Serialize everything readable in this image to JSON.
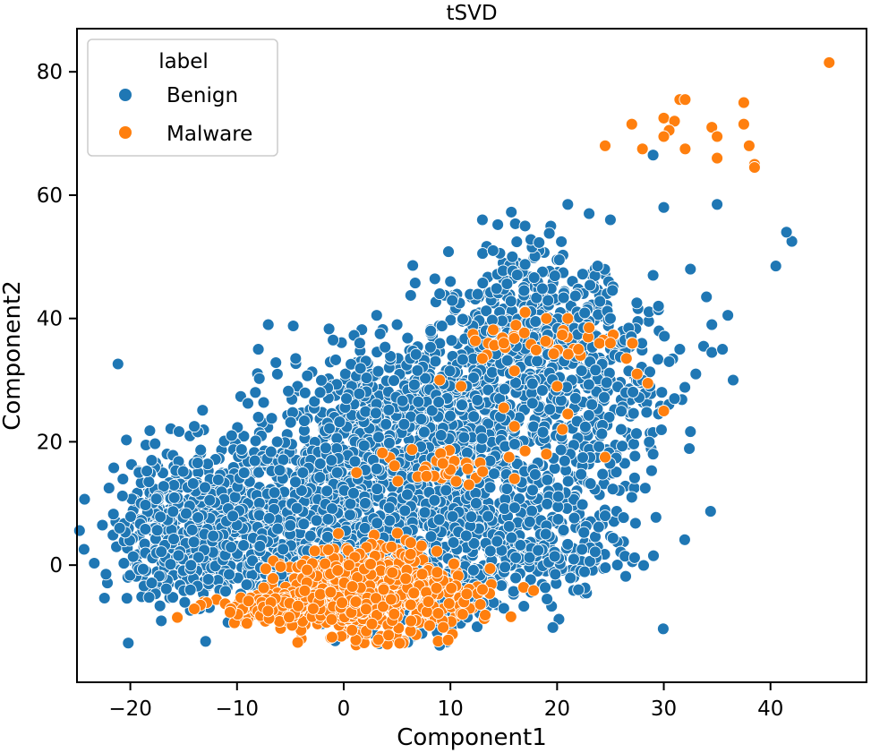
{
  "chart_data": {
    "type": "scatter",
    "title": "tSVD",
    "xlabel": "Component1",
    "ylabel": "Component2",
    "xlim": [
      -25,
      49
    ],
    "ylim": [
      -19,
      87
    ],
    "xticks": [
      -20,
      -10,
      0,
      10,
      20,
      30,
      40
    ],
    "yticks": [
      0,
      20,
      40,
      60,
      80
    ],
    "xtick_labels": [
      "−20",
      "−10",
      "0",
      "10",
      "20",
      "30",
      "40"
    ],
    "ytick_labels": [
      "0",
      "20",
      "40",
      "60",
      "80"
    ],
    "grid": false,
    "legend": {
      "title": "label",
      "position": "top-left",
      "entries": [
        "Benign",
        "Malware"
      ]
    },
    "colors": {
      "Benign": "#1f77b4",
      "Malware": "#ff7f0e"
    },
    "series": [
      {
        "name": "Benign",
        "color": "#1f77b4",
        "outliers": [
          [
            29,
            66.5
          ],
          [
            30,
            58
          ],
          [
            35,
            58.5
          ],
          [
            42,
            52.5
          ],
          [
            41.5,
            54
          ],
          [
            40.5,
            48.5
          ],
          [
            32.5,
            48
          ],
          [
            29,
            47
          ],
          [
            29.5,
            42
          ],
          [
            34,
            43.5
          ],
          [
            36,
            40.5
          ],
          [
            34.5,
            39
          ],
          [
            36.5,
            30
          ],
          [
            34.5,
            34.5
          ],
          [
            31.5,
            35
          ],
          [
            30.5,
            33
          ],
          [
            29.5,
            24.5
          ],
          [
            29,
            18
          ],
          [
            27,
            11
          ],
          [
            -8,
            35
          ],
          [
            -4.5,
            33.5
          ],
          [
            -1,
            36.5
          ],
          [
            1.5,
            36
          ],
          [
            5,
            39
          ],
          [
            9,
            44
          ],
          [
            10,
            46
          ],
          [
            14,
            51
          ],
          [
            13,
            56
          ],
          [
            17,
            55
          ],
          [
            21,
            58.5
          ],
          [
            23,
            57
          ],
          [
            25,
            56
          ],
          [
            -21,
            6
          ],
          [
            -22,
            12.5
          ],
          [
            -18,
            17
          ],
          [
            -14,
            22.5
          ],
          [
            -10.5,
            21
          ],
          [
            -8,
            24
          ],
          [
            25,
            40
          ],
          [
            27,
            36
          ],
          [
            33,
            31
          ],
          [
            35.5,
            35
          ],
          [
            28,
            30
          ],
          [
            31,
            27
          ],
          [
            26,
            22
          ],
          [
            24.5,
            8
          ],
          [
            22,
            -4
          ],
          [
            15,
            -7
          ],
          [
            12.5,
            -10
          ],
          [
            9,
            -13
          ],
          [
            6,
            -12.5
          ],
          [
            1,
            -10.5
          ],
          [
            -2,
            -9.5
          ],
          [
            -8,
            -5
          ]
        ],
        "clusters": [
          {
            "center": [
              -14,
              5
            ],
            "spread": [
              4,
              5
            ],
            "count": 260
          },
          {
            "center": [
              -6,
              10
            ],
            "spread": [
              5,
              7
            ],
            "count": 320
          },
          {
            "center": [
              2,
              15
            ],
            "spread": [
              6,
              8
            ],
            "count": 360
          },
          {
            "center": [
              6,
              25
            ],
            "spread": [
              6,
              6
            ],
            "count": 260
          },
          {
            "center": [
              12,
              30
            ],
            "spread": [
              5,
              7
            ],
            "count": 260
          },
          {
            "center": [
              18,
              40
            ],
            "spread": [
              4,
              6
            ],
            "count": 280
          },
          {
            "center": [
              20,
              25
            ],
            "spread": [
              5,
              9
            ],
            "count": 260
          },
          {
            "center": [
              12,
              10
            ],
            "spread": [
              7,
              7
            ],
            "count": 320
          },
          {
            "center": [
              18,
              2
            ],
            "spread": [
              5,
              4
            ],
            "count": 160
          },
          {
            "center": [
              -10,
              -1
            ],
            "spread": [
              5,
              3
            ],
            "count": 160
          },
          {
            "center": [
              -16,
              12
            ],
            "spread": [
              3,
              4
            ],
            "count": 100
          },
          {
            "center": [
              24,
              30
            ],
            "spread": [
              3,
              7
            ],
            "count": 140
          },
          {
            "center": [
              8,
              -6
            ],
            "spread": [
              4,
              3
            ],
            "count": 110
          },
          {
            "center": [
              0,
              5
            ],
            "spread": [
              7,
              5
            ],
            "count": 260
          }
        ]
      },
      {
        "name": "Malware",
        "color": "#ff7f0e",
        "outliers": [
          [
            45.5,
            81.5
          ],
          [
            31.5,
            75.5
          ],
          [
            32,
            75.5
          ],
          [
            37.5,
            75
          ],
          [
            27,
            71.5
          ],
          [
            30,
            72.5
          ],
          [
            31,
            72
          ],
          [
            37.5,
            71.5
          ],
          [
            34.5,
            71
          ],
          [
            30.5,
            70.5
          ],
          [
            35,
            69.5
          ],
          [
            30,
            69.5
          ],
          [
            24.5,
            68
          ],
          [
            28,
            67.5
          ],
          [
            32,
            67.5
          ],
          [
            38,
            68
          ],
          [
            35,
            66
          ],
          [
            38.5,
            65
          ],
          [
            38.5,
            64.5
          ],
          [
            30,
            25
          ],
          [
            17,
            41
          ],
          [
            19,
            40
          ],
          [
            21,
            40
          ],
          [
            23,
            38.5
          ],
          [
            25,
            36
          ],
          [
            26.5,
            33.5
          ],
          [
            27.5,
            31
          ],
          [
            28.5,
            29.5
          ],
          [
            22,
            35
          ],
          [
            15,
            36
          ],
          [
            13,
            33.5
          ],
          [
            16,
            31.5
          ],
          [
            9,
            30
          ],
          [
            11,
            29
          ],
          [
            20,
            29
          ],
          [
            21,
            24.5
          ],
          [
            20.5,
            22
          ],
          [
            15,
            25.5
          ],
          [
            16,
            22.5
          ],
          [
            15.5,
            17.5
          ],
          [
            17,
            18.5
          ],
          [
            24.5,
            17.5
          ],
          [
            19,
            18
          ],
          [
            16,
            14
          ]
        ],
        "clusters": [
          {
            "center": [
              2,
              -4
            ],
            "spread": [
              3.5,
              3.5
            ],
            "count": 480
          },
          {
            "center": [
              -5,
              -7
            ],
            "spread": [
              4,
              1.2
            ],
            "count": 160
          },
          {
            "center": [
              8,
              -5
            ],
            "spread": [
              3,
              2.5
            ],
            "count": 140
          },
          {
            "center": [
              9,
              16
            ],
            "spread": [
              3,
              1.5
            ],
            "count": 30
          },
          {
            "center": [
              19,
              36
            ],
            "spread": [
              4,
              2
            ],
            "count": 30
          }
        ]
      }
    ]
  }
}
